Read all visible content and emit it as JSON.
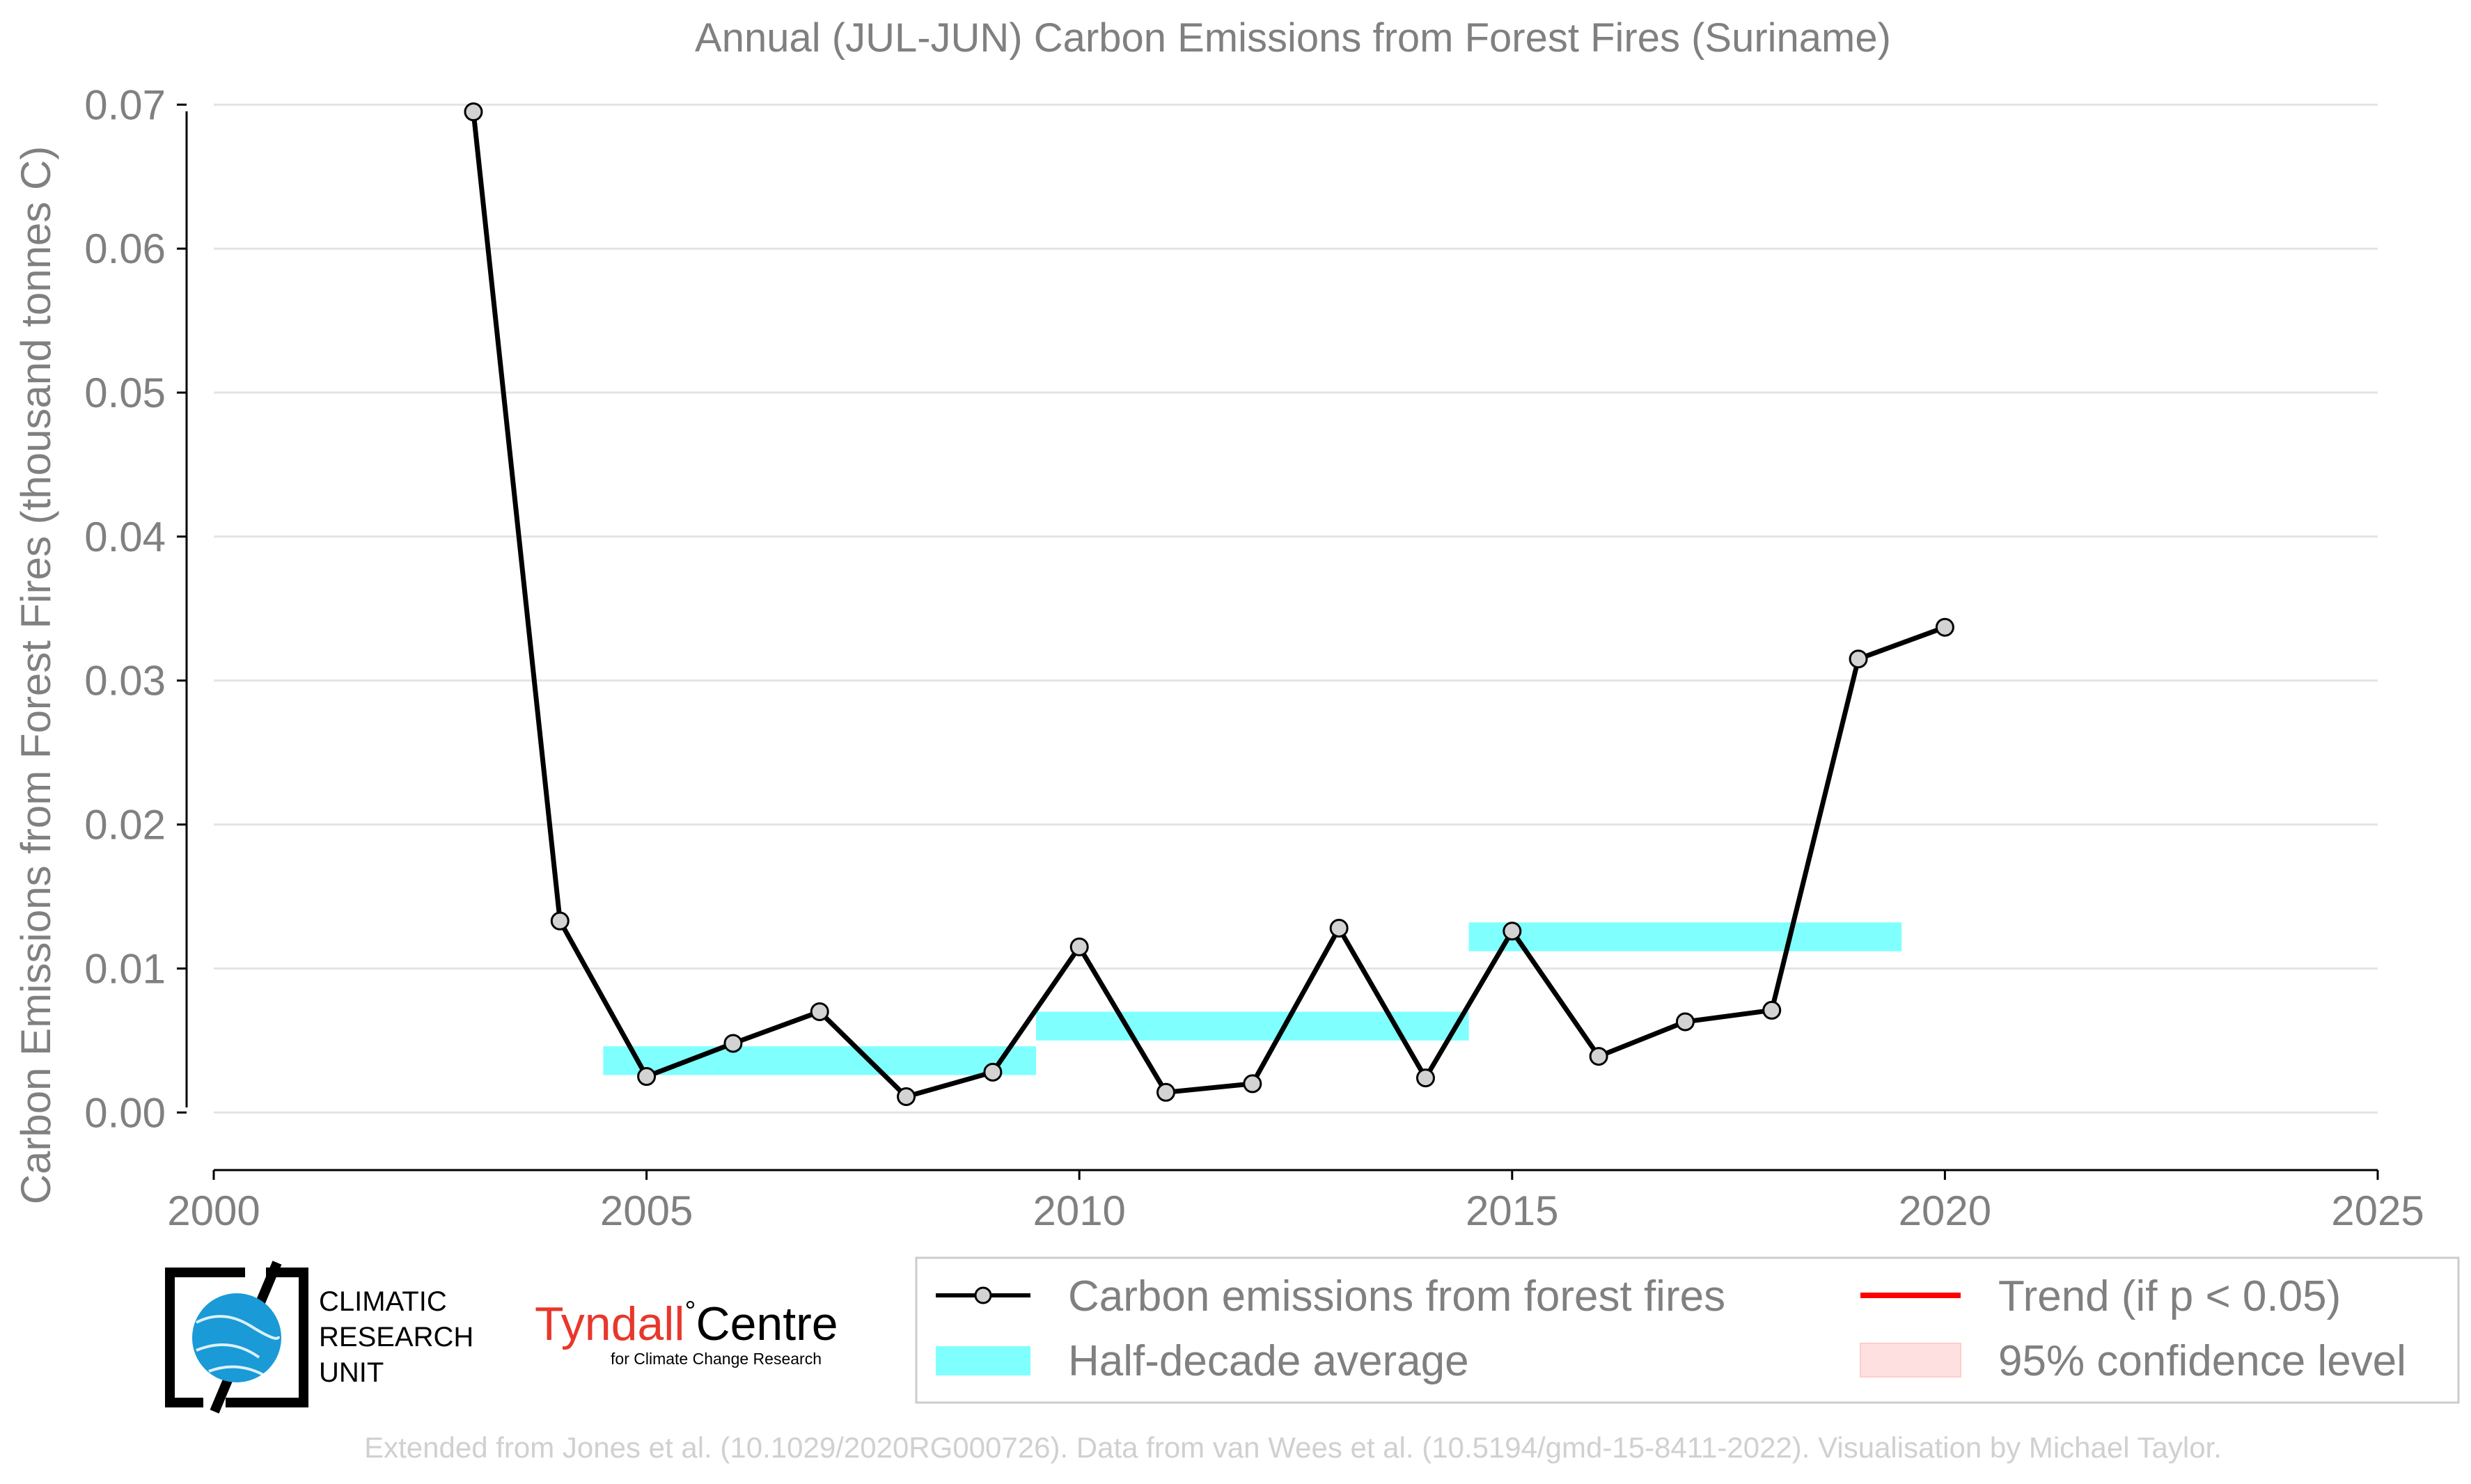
{
  "chart_data": {
    "type": "line",
    "title": "Annual (JUL-JUN) Carbon Emissions from Forest Fires (Suriname)",
    "xlabel": "",
    "ylabel": "Carbon Emissions from Forest Fires (thousand tonnes C)",
    "xlim": [
      2000,
      2025
    ],
    "ylim": [
      -0.004,
      0.0705
    ],
    "x_ticks": [
      "2000",
      "2005",
      "2010",
      "2015",
      "2020",
      "2025"
    ],
    "y_ticks": [
      "0.00",
      "0.01",
      "0.02",
      "0.03",
      "0.04",
      "0.05",
      "0.06",
      "0.07"
    ],
    "grid": "horizontal",
    "series": [
      {
        "name": "Carbon emissions from forest fires",
        "color": "#000000",
        "marker_fill": "#d3d3d3",
        "x": [
          2003,
          2004,
          2005,
          2006,
          2007,
          2008,
          2009,
          2010,
          2011,
          2012,
          2013,
          2014,
          2015,
          2016,
          2017,
          2018,
          2019,
          2020
        ],
        "y": [
          0.0695,
          0.0133,
          0.0025,
          0.0048,
          0.007,
          0.0011,
          0.0028,
          0.0115,
          0.0014,
          0.002,
          0.0128,
          0.0024,
          0.0126,
          0.0039,
          0.0063,
          0.0071,
          0.0315,
          0.0337
        ]
      }
    ],
    "half_decade_average": {
      "name": "Half-decade average",
      "color": "#80ffff",
      "segments": [
        {
          "start": 2004.5,
          "end": 2009.5,
          "value": 0.0036
        },
        {
          "start": 2009.5,
          "end": 2014.5,
          "value": 0.006
        },
        {
          "start": 2014.5,
          "end": 2019.5,
          "value": 0.0122
        }
      ]
    },
    "legend": {
      "placement": "bottom-right",
      "entries": [
        {
          "label": "Carbon emissions from forest fires",
          "kind": "line-marker",
          "color": "#000000"
        },
        {
          "label": "Trend (if p < 0.05)",
          "kind": "line",
          "color": "#ff0000"
        },
        {
          "label": "Half-decade average",
          "kind": "band",
          "color": "#80ffff"
        },
        {
          "label": "95% confidence level",
          "kind": "patch",
          "color": "#ffe0e0"
        }
      ]
    }
  },
  "logos": {
    "cru": {
      "line1": "CLIMATIC",
      "line2": "RESEARCH",
      "line3": "UNIT"
    },
    "tyndall": {
      "name_red": "Tyndall",
      "degree": "°",
      "name_black": "Centre",
      "subtitle": "for Climate Change Research"
    }
  },
  "credit": "Extended from Jones et al. (10.1029/2020RG000726). Data from van Wees et al. (10.5194/gmd-15-8411-2022). Visualisation by Michael Taylor."
}
